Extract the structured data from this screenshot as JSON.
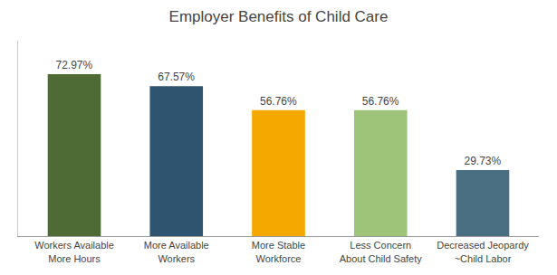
{
  "chart_data": {
    "type": "bar",
    "title": "Employer Benefits of Child Care",
    "categories": [
      "Workers Available\nMore Hours",
      "More Available\nWorkers",
      "More Stable\nWorkforce",
      "Less Concern\nAbout Child Safety",
      "Decreased Jeopardy\n~Child Labor"
    ],
    "values": [
      72.97,
      67.57,
      56.76,
      56.76,
      29.73
    ],
    "value_labels": [
      "72.97%",
      "67.57%",
      "56.76%",
      "56.76%",
      "29.73%"
    ],
    "data_labels": true,
    "colors": [
      "#4e6b35",
      "#2e5470",
      "#f5a800",
      "#9ec47a",
      "#4a6e82"
    ],
    "ylim": [
      0,
      88
    ],
    "grid": false,
    "tick_labels": "x"
  }
}
